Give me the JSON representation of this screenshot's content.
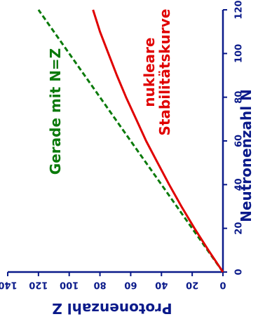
{
  "chart_data": {
    "type": "line",
    "xlabel": "Neutronenzahl N",
    "ylabel": "Protonenzahl Z",
    "xlim": [
      0,
      120
    ],
    "ylim": [
      0,
      140
    ],
    "x_ticks": [
      "0",
      "20",
      "40",
      "60",
      "80",
      "100",
      "120"
    ],
    "y_ticks": [
      "0",
      "20",
      "40",
      "60",
      "80",
      "100",
      "120",
      "140"
    ],
    "series": [
      {
        "color": "#0a7a0a",
        "style": "dashed",
        "x": [
          0,
          20,
          40,
          60,
          80,
          100,
          120
        ],
        "y": [
          0,
          20,
          40,
          60,
          80,
          100,
          120
        ]
      },
      {
        "color": "#e00000",
        "style": "solid",
        "x": [
          0,
          10,
          20,
          30,
          40,
          50,
          60,
          70,
          80,
          90,
          100,
          110,
          120
        ],
        "y": [
          0,
          9.5,
          18.5,
          27,
          35,
          42.5,
          50,
          56.5,
          63,
          69,
          74.5,
          80,
          84.5
        ]
      }
    ],
    "annotations": [
      {
        "text": "Gerade mit N=Z",
        "color": "#0a7a0a"
      },
      {
        "text": "nukleare",
        "color": "#e00000"
      },
      {
        "text": "Stabilitätskurve",
        "color": "#e00000"
      }
    ],
    "axis_color": "#0a1a8a"
  }
}
